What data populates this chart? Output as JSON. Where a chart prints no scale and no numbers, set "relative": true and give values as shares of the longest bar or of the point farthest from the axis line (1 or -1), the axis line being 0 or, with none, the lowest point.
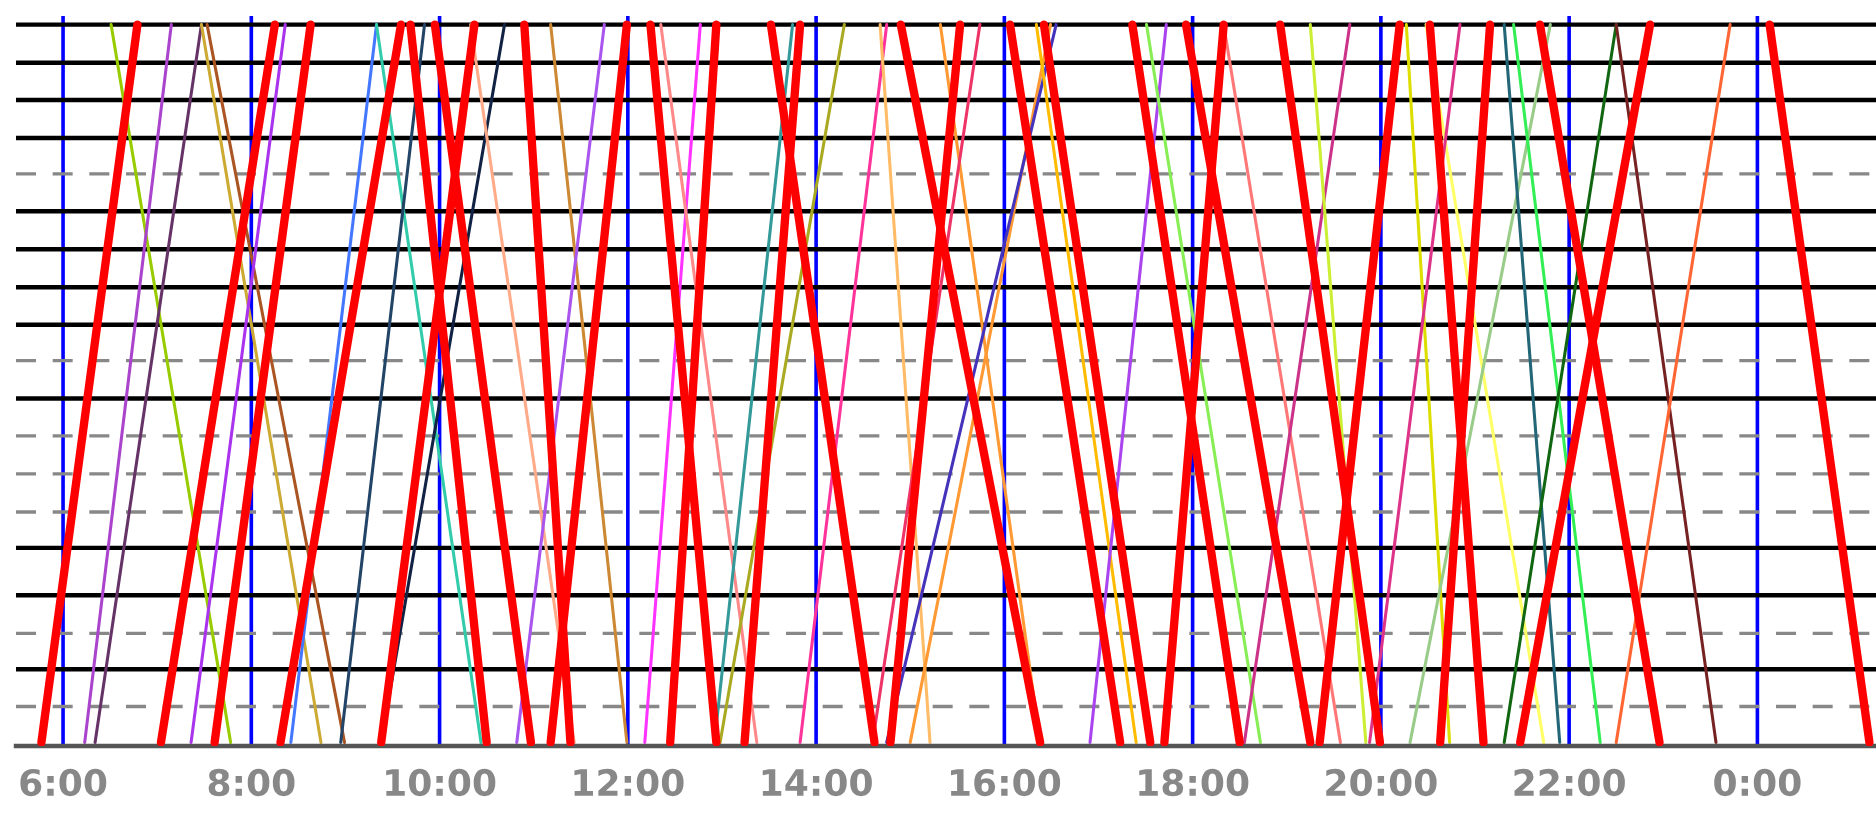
{
  "chart_data": {
    "type": "line",
    "relative": true,
    "tick_labels": "x",
    "grid": "x",
    "legend": false,
    "marker": "none",
    "line_style": "solid",
    "xlim": [
      5.5,
      25.26
    ],
    "xticks": [
      {
        "value": 6,
        "label": "6:00"
      },
      {
        "value": 8,
        "label": "8:00"
      },
      {
        "value": 10,
        "label": "10:00"
      },
      {
        "value": 12,
        "label": "12:00"
      },
      {
        "value": 14,
        "label": "14:00"
      },
      {
        "value": 16,
        "label": "16:00"
      },
      {
        "value": 18,
        "label": "18:00"
      },
      {
        "value": 20,
        "label": "20:00"
      },
      {
        "value": 22,
        "label": "22:00"
      },
      {
        "value": 24,
        "label": "0:00"
      }
    ],
    "ref_lines": [
      {
        "axis": "y",
        "value": 1,
        "color": "#000000",
        "line_style": "solid"
      },
      {
        "axis": "y",
        "value": 0.947,
        "color": "#000000",
        "line_style": "solid"
      },
      {
        "axis": "y",
        "value": 0.895,
        "color": "#000000",
        "line_style": "solid"
      },
      {
        "axis": "y",
        "value": 0.842,
        "color": "#000000",
        "line_style": "solid"
      },
      {
        "axis": "y",
        "value": 0.792,
        "color": "#888888",
        "line_style": "dashed"
      },
      {
        "axis": "y",
        "value": 0.74,
        "color": "#000000",
        "line_style": "solid"
      },
      {
        "axis": "y",
        "value": 0.687,
        "color": "#000000",
        "line_style": "solid"
      },
      {
        "axis": "y",
        "value": 0.634,
        "color": "#000000",
        "line_style": "solid"
      },
      {
        "axis": "y",
        "value": 0.582,
        "color": "#000000",
        "line_style": "solid"
      },
      {
        "axis": "y",
        "value": 0.532,
        "color": "#888888",
        "line_style": "dashed"
      },
      {
        "axis": "y",
        "value": 0.479,
        "color": "#000000",
        "line_style": "solid"
      },
      {
        "axis": "y",
        "value": 0.427,
        "color": "#888888",
        "line_style": "dashed"
      },
      {
        "axis": "y",
        "value": 0.374,
        "color": "#888888",
        "line_style": "dashed"
      },
      {
        "axis": "y",
        "value": 0.321,
        "color": "#888888",
        "line_style": "dashed"
      },
      {
        "axis": "y",
        "value": 0.271,
        "color": "#000000",
        "line_style": "solid"
      },
      {
        "axis": "y",
        "value": 0.205,
        "color": "#000000",
        "line_style": "solid"
      },
      {
        "axis": "y",
        "value": 0.152,
        "color": "#888888",
        "line_style": "dashed"
      },
      {
        "axis": "y",
        "value": 0.102,
        "color": "#000000",
        "line_style": "solid"
      },
      {
        "axis": "y",
        "value": 0.05,
        "color": "#888888",
        "line_style": "dashed"
      }
    ],
    "series": [
      {
        "color": "#ff0000",
        "x": [
          6.79,
          5.77
        ],
        "values": [
          1,
          0
        ]
      },
      {
        "color": "#ff0000",
        "x": [
          8.25,
          7.04
        ],
        "values": [
          1,
          0
        ]
      },
      {
        "color": "#ff0000",
        "x": [
          8.63,
          7.61
        ],
        "values": [
          1,
          0
        ]
      },
      {
        "color": "#ff0000",
        "x": [
          9.59,
          8.31
        ],
        "values": [
          1,
          0
        ]
      },
      {
        "color": "#ff0000",
        "x": [
          9.69,
          10.5
        ],
        "values": [
          1,
          0
        ]
      },
      {
        "color": "#ff0000",
        "x": [
          9.95,
          10.97
        ],
        "values": [
          1,
          0
        ]
      },
      {
        "color": "#ff0000",
        "x": [
          10.37,
          9.38
        ],
        "values": [
          1,
          0
        ]
      },
      {
        "color": "#ff0000",
        "x": [
          10.9,
          11.39
        ],
        "values": [
          1,
          0
        ]
      },
      {
        "color": "#ff0000",
        "x": [
          11.99,
          11.18
        ],
        "values": [
          1,
          0
        ]
      },
      {
        "color": "#ff0000",
        "x": [
          12.24,
          12.94
        ],
        "values": [
          1,
          0
        ]
      },
      {
        "color": "#ff0000",
        "x": [
          12.94,
          12.45
        ],
        "values": [
          1,
          0
        ]
      },
      {
        "color": "#ff0000",
        "x": [
          13.52,
          14.62
        ],
        "values": [
          1,
          0
        ]
      },
      {
        "color": "#ff0000",
        "x": [
          13.83,
          13.24
        ],
        "values": [
          1,
          0
        ]
      },
      {
        "color": "#ff0000",
        "x": [
          14.9,
          16.38
        ],
        "values": [
          1,
          0
        ]
      },
      {
        "color": "#ff0000",
        "x": [
          15.53,
          14.79
        ],
        "values": [
          1,
          0
        ]
      },
      {
        "color": "#ff0000",
        "x": [
          16.06,
          17.23
        ],
        "values": [
          1,
          0
        ]
      },
      {
        "color": "#ff0000",
        "x": [
          16.42,
          17.55
        ],
        "values": [
          1,
          0
        ]
      },
      {
        "color": "#ff0000",
        "x": [
          17.36,
          18.5
        ],
        "values": [
          1,
          0
        ]
      },
      {
        "color": "#ff0000",
        "x": [
          17.93,
          19.25
        ],
        "values": [
          1,
          0
        ]
      },
      {
        "color": "#ff0000",
        "x": [
          18.33,
          17.7
        ],
        "values": [
          1,
          0
        ]
      },
      {
        "color": "#ff0000",
        "x": [
          18.93,
          19.99
        ],
        "values": [
          1,
          0
        ]
      },
      {
        "color": "#ff0000",
        "x": [
          20.2,
          19.35
        ],
        "values": [
          1,
          0
        ]
      },
      {
        "color": "#ff0000",
        "x": [
          20.52,
          21.09
        ],
        "values": [
          1,
          0
        ]
      },
      {
        "color": "#ff0000",
        "x": [
          21.16,
          20.63
        ],
        "values": [
          1,
          0
        ]
      },
      {
        "color": "#ff0000",
        "x": [
          21.69,
          22.96
        ],
        "values": [
          1,
          0
        ]
      },
      {
        "color": "#ff0000",
        "x": [
          22.86,
          21.48
        ],
        "values": [
          1,
          0
        ]
      },
      {
        "color": "#ff0000",
        "x": [
          24.13,
          25.19
        ],
        "values": [
          1,
          0
        ]
      },
      {
        "color": "#99cc00",
        "x": [
          6.51,
          7.78
        ],
        "values": [
          1,
          0
        ]
      },
      {
        "color": "#aa44cc",
        "x": [
          7.15,
          6.23
        ],
        "values": [
          1,
          0
        ]
      },
      {
        "color": "#663366",
        "x": [
          7.47,
          6.34
        ],
        "values": [
          1,
          0
        ]
      },
      {
        "color": "#ccaa33",
        "x": [
          7.47,
          8.74
        ],
        "values": [
          1,
          0
        ]
      },
      {
        "color": "#aa5522",
        "x": [
          7.53,
          8.99
        ],
        "values": [
          1,
          0
        ]
      },
      {
        "color": "#aa33ee",
        "x": [
          8.36,
          7.36
        ],
        "values": [
          1,
          0
        ]
      },
      {
        "color": "#4477ff",
        "x": [
          9.33,
          8.42
        ],
        "values": [
          1,
          0
        ]
      },
      {
        "color": "#33ccaa",
        "x": [
          9.33,
          10.44
        ],
        "values": [
          1,
          0
        ]
      },
      {
        "color": "#224466",
        "x": [
          9.84,
          8.95
        ],
        "values": [
          1,
          0
        ]
      },
      {
        "color": "#112244",
        "x": [
          10.69,
          9.38
        ],
        "values": [
          1,
          0
        ]
      },
      {
        "color": "#ffaa88",
        "x": [
          10.33,
          11.43
        ],
        "values": [
          1,
          0
        ]
      },
      {
        "color": "#cc8833",
        "x": [
          11.18,
          11.99
        ],
        "values": [
          1,
          0
        ]
      },
      {
        "color": "#aa55ee",
        "x": [
          11.75,
          10.82
        ],
        "values": [
          1,
          0
        ]
      },
      {
        "color": "#ff33ff",
        "x": [
          12.77,
          12.18
        ],
        "values": [
          1,
          0
        ]
      },
      {
        "color": "#ff8888",
        "x": [
          12.35,
          13.37
        ],
        "values": [
          1,
          0
        ]
      },
      {
        "color": "#339999",
        "x": [
          13.75,
          12.92
        ],
        "values": [
          1,
          0
        ]
      },
      {
        "color": "#aaaa22",
        "x": [
          14.3,
          12.98
        ],
        "values": [
          1,
          0
        ]
      },
      {
        "color": "#ff3399",
        "x": [
          14.75,
          13.83
        ],
        "values": [
          1,
          0
        ]
      },
      {
        "color": "#ffbb66",
        "x": [
          14.68,
          15.21
        ],
        "values": [
          1,
          0
        ]
      },
      {
        "color": "#ff9933",
        "x": [
          15.32,
          16.38
        ],
        "values": [
          1,
          0
        ]
      },
      {
        "color": "#ee3366",
        "x": [
          15.74,
          14.6
        ],
        "values": [
          1,
          0
        ]
      },
      {
        "color": "#ff9933",
        "x": [
          16.49,
          15.0
        ],
        "values": [
          1,
          0
        ]
      },
      {
        "color": "#4433bb",
        "x": [
          16.55,
          14.75
        ],
        "values": [
          1,
          0
        ]
      },
      {
        "color": "#ffbb00",
        "x": [
          16.34,
          17.4
        ],
        "values": [
          1,
          0
        ]
      },
      {
        "color": "#aa44ee",
        "x": [
          17.72,
          16.91
        ],
        "values": [
          1,
          0
        ]
      },
      {
        "color": "#88ee55",
        "x": [
          17.51,
          18.72
        ],
        "values": [
          1,
          0
        ]
      },
      {
        "color": "#ff7777",
        "x": [
          18.33,
          19.57
        ],
        "values": [
          1,
          0
        ]
      },
      {
        "color": "#cc3388",
        "x": [
          19.67,
          18.55
        ],
        "values": [
          1,
          0
        ]
      },
      {
        "color": "#ccee33",
        "x": [
          19.25,
          19.84
        ],
        "values": [
          1,
          0
        ]
      },
      {
        "color": "#dddd00",
        "x": [
          20.27,
          20.73
        ],
        "values": [
          1,
          0
        ]
      },
      {
        "color": "#ffff66",
        "x": [
          20.48,
          21.73
        ],
        "values": [
          1,
          0
        ]
      },
      {
        "color": "#dd3388",
        "x": [
          20.84,
          19.88
        ],
        "values": [
          1,
          0
        ]
      },
      {
        "color": "#99cc88",
        "x": [
          21.8,
          20.31
        ],
        "values": [
          1,
          0
        ]
      },
      {
        "color": "#226677",
        "x": [
          21.31,
          21.9
        ],
        "values": [
          1,
          0
        ]
      },
      {
        "color": "#33ee55",
        "x": [
          21.41,
          22.33
        ],
        "values": [
          1,
          0
        ]
      },
      {
        "color": "#116611",
        "x": [
          22.5,
          21.31
        ],
        "values": [
          1,
          0
        ]
      },
      {
        "color": "#772222",
        "x": [
          22.5,
          23.56
        ],
        "values": [
          1,
          0
        ]
      },
      {
        "color": "#ff6633",
        "x": [
          23.71,
          22.5
        ],
        "values": [
          1,
          0
        ]
      }
    ]
  }
}
